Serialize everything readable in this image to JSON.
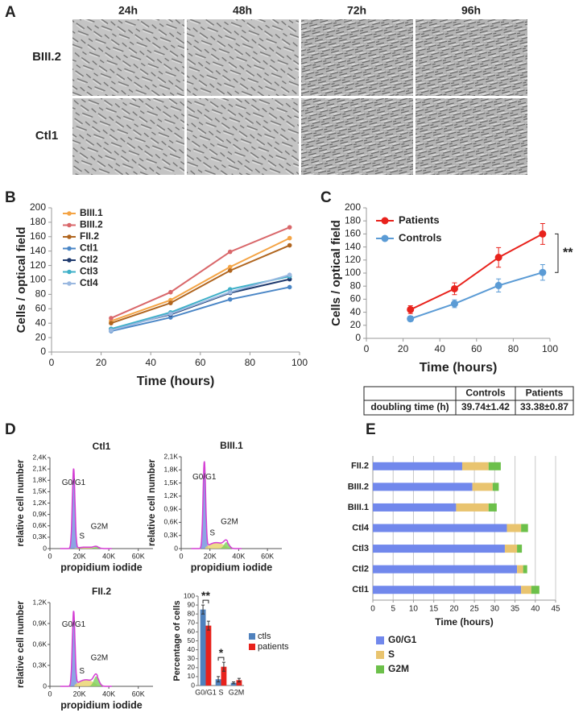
{
  "panels": [
    "A",
    "B",
    "C",
    "D",
    "E"
  ],
  "images": {
    "columns": [
      "24h",
      "48h",
      "72h",
      "96h"
    ],
    "rows": [
      "BIII.2",
      "Ctl1"
    ]
  },
  "chart_data": [
    {
      "type": "line",
      "ylabel": "Cells / optical field",
      "xlabel": "Time (hours)",
      "x": [
        24,
        48,
        72,
        96
      ],
      "xlim": [
        0,
        100
      ],
      "xticks": [
        0,
        20,
        40,
        60,
        80,
        100
      ],
      "ylim": [
        0,
        200
      ],
      "yticks": [
        0,
        20,
        40,
        60,
        80,
        100,
        120,
        140,
        160,
        180,
        200
      ],
      "legend": "upper left",
      "series": [
        {
          "name": "BIII.1",
          "color": "#f4a445",
          "values": [
            43,
            72,
            118,
            158
          ]
        },
        {
          "name": "BIII.2",
          "color": "#d9676a",
          "values": [
            47,
            83,
            139,
            173
          ]
        },
        {
          "name": "FII.2",
          "color": "#b0651f",
          "values": [
            40,
            68,
            113,
            148
          ]
        },
        {
          "name": "Ctl1",
          "color": "#4a86c6",
          "values": [
            29,
            48,
            73,
            90
          ]
        },
        {
          "name": "Ctl2",
          "color": "#1f3a6e",
          "values": [
            32,
            52,
            82,
            101
          ]
        },
        {
          "name": "Ctl3",
          "color": "#3fb0c8",
          "values": [
            32,
            55,
            87,
            105
          ]
        },
        {
          "name": "Ctl4",
          "color": "#9ab8e0",
          "values": [
            30,
            53,
            83,
            107
          ]
        }
      ]
    },
    {
      "type": "line",
      "ylabel": "Cells / optical field",
      "xlabel": "Time (hours)",
      "x": [
        24,
        48,
        72,
        96
      ],
      "xlim": [
        0,
        100
      ],
      "xticks": [
        0,
        20,
        40,
        60,
        80,
        100
      ],
      "ylim": [
        0,
        200
      ],
      "yticks": [
        0,
        20,
        40,
        60,
        80,
        100,
        120,
        140,
        160,
        180,
        200
      ],
      "legend": "upper left",
      "annotation": "**",
      "series": [
        {
          "name": "Patients",
          "color": "#e8221c",
          "values": [
            44,
            76,
            124,
            160
          ],
          "errors": [
            6,
            9,
            15,
            16
          ]
        },
        {
          "name": "Controls",
          "color": "#5b9bd5",
          "values": [
            30,
            53,
            81,
            101
          ],
          "errors": [
            4,
            6,
            10,
            12
          ]
        }
      ]
    },
    {
      "type": "flow",
      "title": "Ctl1",
      "ylabel": "relative cell number",
      "xlabel": "propidium iodide",
      "xlim": [
        0,
        70000
      ],
      "xticks": [
        0,
        {
          "value": 20000,
          "label": "20K"
        },
        {
          "value": 40000,
          "label": "40K"
        },
        {
          "value": 60000,
          "label": "60K"
        }
      ],
      "ylim": [
        0,
        2400
      ],
      "yticks": [
        0,
        {
          "value": 300,
          "label": "0,3K"
        },
        {
          "value": 600,
          "label": "0,6K"
        },
        {
          "value": 900,
          "label": "0,9K"
        },
        {
          "value": 1200,
          "label": "1,2K"
        },
        {
          "value": 1500,
          "label": "1,5K"
        },
        {
          "value": 1800,
          "label": "1,8K"
        },
        {
          "value": 2100,
          "label": "2,1K"
        },
        {
          "value": 2400,
          "label": "2,4K"
        }
      ],
      "peak_labels": [
        "G0/G1",
        "S",
        "G2M"
      ]
    },
    {
      "type": "flow",
      "title": "BIII.1",
      "ylabel": "relative cell number",
      "xlabel": "propidium iodide",
      "xlim": [
        0,
        70000
      ],
      "xticks": [
        0,
        {
          "value": 20000,
          "label": "20K"
        },
        {
          "value": 40000,
          "label": "40K"
        },
        {
          "value": 60000,
          "label": "60K"
        }
      ],
      "ylim": [
        0,
        2100
      ],
      "yticks": [
        0,
        {
          "value": 300,
          "label": "0,3K"
        },
        {
          "value": 600,
          "label": "0,6K"
        },
        {
          "value": 900,
          "label": "0,9K"
        },
        {
          "value": 1200,
          "label": "1,2K"
        },
        {
          "value": 1500,
          "label": "1,5K"
        },
        {
          "value": 1800,
          "label": "1,8K"
        },
        {
          "value": 2100,
          "label": "2,1K"
        }
      ],
      "peak_labels": [
        "G0/G1",
        "S",
        "G2M"
      ]
    },
    {
      "type": "flow",
      "title": "FII.2",
      "ylabel": "relative cell number",
      "xlabel": "propidium iodide",
      "xlim": [
        0,
        70000
      ],
      "xticks": [
        0,
        {
          "value": 20000,
          "label": "20K"
        },
        {
          "value": 40000,
          "label": "40K"
        },
        {
          "value": 60000,
          "label": "60K"
        }
      ],
      "ylim": [
        0,
        1200
      ],
      "yticks": [
        0,
        {
          "value": 300,
          "label": "0,3K"
        },
        {
          "value": 600,
          "label": "0,6K"
        },
        {
          "value": 900,
          "label": "0,9K"
        },
        {
          "value": 1200,
          "label": "1,2K"
        }
      ],
      "peak_labels": [
        "G0/G1",
        "S",
        "G2M"
      ]
    },
    {
      "type": "bar",
      "ylabel": "Percentage of cells",
      "categories": [
        "G0/G1",
        "S",
        "G2M"
      ],
      "ylim": [
        0,
        100
      ],
      "yticks": [
        0,
        10,
        20,
        30,
        40,
        50,
        60,
        70,
        80,
        90,
        100
      ],
      "annotations": [
        "**",
        "*"
      ],
      "series": [
        {
          "name": "ctls",
          "color": "#4f81bd",
          "values": [
            85,
            7,
            3
          ],
          "errors": [
            5,
            3,
            1
          ]
        },
        {
          "name": "patients",
          "color": "#e8221c",
          "values": [
            67,
            21,
            6
          ],
          "errors": [
            5,
            5,
            2
          ]
        }
      ]
    },
    {
      "type": "hbar-stacked",
      "xlabel": "Time (hours)",
      "categories": [
        "FII.2",
        "BIII.2",
        "BIII.1",
        "Ctl4",
        "Ctl3",
        "Ctl2",
        "Ctl1"
      ],
      "xlim": [
        0,
        45
      ],
      "xticks": [
        0,
        5,
        10,
        15,
        20,
        25,
        30,
        35,
        40,
        45
      ],
      "grid": true,
      "series": [
        {
          "name": "G0/G1",
          "color": "#7188ec",
          "values": [
            22,
            24.5,
            20.5,
            33,
            32.5,
            35.5,
            36.5
          ]
        },
        {
          "name": "S",
          "color": "#e9c46f",
          "values": [
            6.5,
            5,
            8,
            3.5,
            3,
            1.5,
            2.5
          ]
        },
        {
          "name": "G2M",
          "color": "#6cc04a",
          "values": [
            3,
            1.5,
            2,
            1.7,
            1.2,
            1,
            2
          ]
        }
      ]
    }
  ],
  "table": {
    "header": [
      "Controls",
      "Patients"
    ],
    "rows": [
      [
        "doubling time (h)",
        "39.74±1.42",
        "33.38±0.87"
      ]
    ]
  }
}
